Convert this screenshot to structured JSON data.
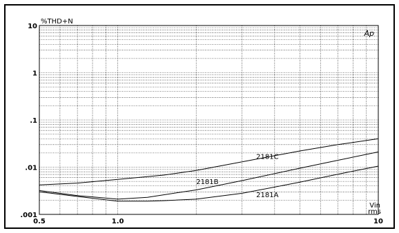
{
  "chart_data": {
    "type": "line",
    "title": "",
    "ylabel": "%THD+N",
    "xlabel": "Vin",
    "xlabel_unit": "rms",
    "brand": "Ap",
    "xscale": "log",
    "yscale": "log",
    "xlim": [
      0.5,
      10
    ],
    "ylim": [
      0.001,
      10
    ],
    "x_ticks": [
      {
        "value": 0.5,
        "label": "0.5"
      },
      {
        "value": 1.0,
        "label": "1.0"
      },
      {
        "value": 10,
        "label": "10"
      }
    ],
    "y_ticks": [
      {
        "value": 10,
        "label": "10"
      },
      {
        "value": 1,
        "label": "1"
      },
      {
        "value": 0.1,
        "label": ".1"
      },
      {
        "value": 0.01,
        "label": ".01"
      },
      {
        "value": 0.001,
        "label": ".001"
      }
    ],
    "grid": true,
    "series": [
      {
        "name": "2181C",
        "x": [
          0.5,
          0.7,
          1.0,
          1.5,
          2.0,
          3.0,
          5.0,
          7.0,
          10
        ],
        "y": [
          0.0042,
          0.0046,
          0.0055,
          0.0068,
          0.0085,
          0.013,
          0.022,
          0.03,
          0.04
        ]
      },
      {
        "name": "2181B",
        "x": [
          0.5,
          0.7,
          1.0,
          1.3,
          1.5,
          2.0,
          3.0,
          5.0,
          7.0,
          10
        ],
        "y": [
          0.0032,
          0.0025,
          0.0021,
          0.0023,
          0.0026,
          0.0033,
          0.0052,
          0.0095,
          0.014,
          0.021
        ]
      },
      {
        "name": "2181A",
        "x": [
          0.5,
          0.7,
          1.0,
          1.3,
          1.5,
          2.0,
          3.0,
          5.0,
          7.0,
          10
        ],
        "y": [
          0.003,
          0.0024,
          0.0019,
          0.0019,
          0.00195,
          0.0021,
          0.0028,
          0.0048,
          0.0071,
          0.0105
        ]
      }
    ],
    "annotations": [
      {
        "series": "2181C",
        "x": 3.4,
        "y": 0.015
      },
      {
        "series": "2181B",
        "x": 2.0,
        "y": 0.0044
      },
      {
        "series": "2181A",
        "x": 3.4,
        "y": 0.0023
      }
    ]
  }
}
